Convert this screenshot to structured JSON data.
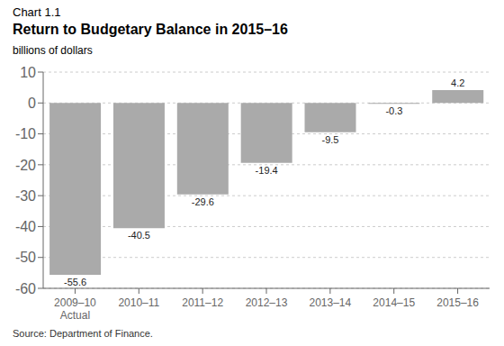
{
  "chart_data": {
    "type": "bar",
    "title": "Chart 1.1",
    "subtitle": "Return to Budgetary Balance in 2015–16",
    "ylabel": "billions of dollars",
    "annotations": [
      "Source: Department of Finance."
    ],
    "categories": [
      "2009–10\nActual",
      "2010–11",
      "2011–12",
      "2012–13",
      "2013–14",
      "2014–15",
      "2015–16"
    ],
    "values": [
      -55.6,
      -40.5,
      -29.6,
      -19.4,
      -9.5,
      -0.3,
      4.2
    ],
    "color": "#aaaaaa",
    "ylim": [
      -60,
      10
    ],
    "yticks": [
      -60,
      -50,
      -40,
      -30,
      -20,
      -10,
      0,
      10
    ],
    "grid": true,
    "data_labels": true
  }
}
